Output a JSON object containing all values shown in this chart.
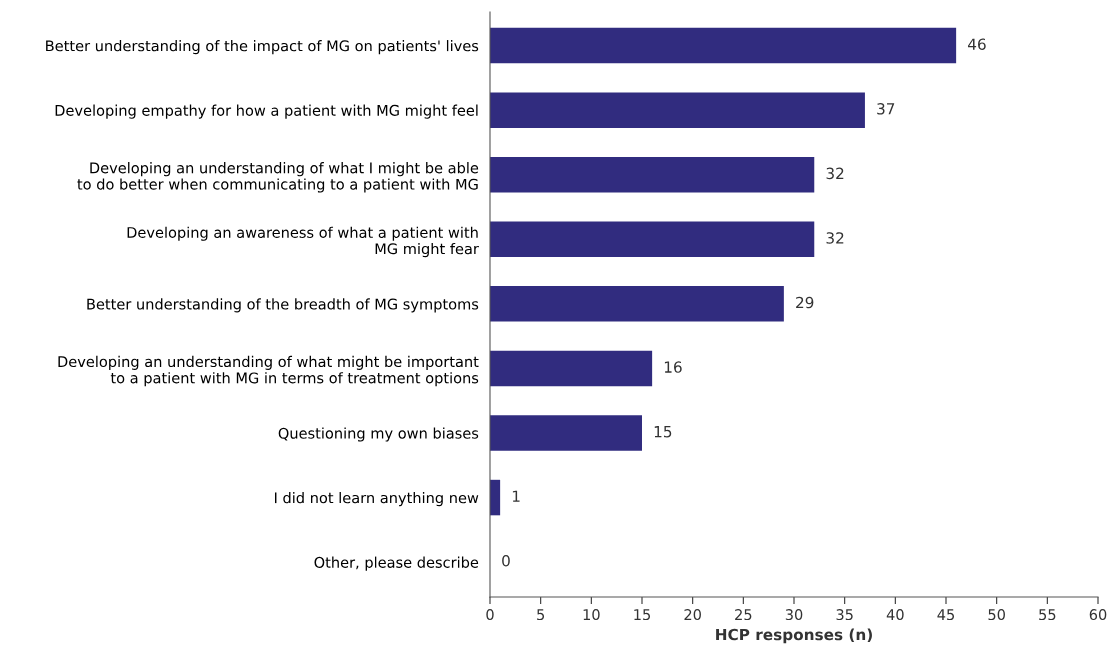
{
  "chart_data": {
    "type": "bar",
    "orientation": "horizontal",
    "xlabel": "HCP responses (n)",
    "categories": [
      "Better understanding of the impact of MG on patients' lives",
      "Developing empathy for how a patient with MG might feel",
      "Developing an understanding of what I might be able\nto do better when communicating to a patient with MG",
      "Developing an awareness of what a patient with\nMG might fear",
      "Better understanding of the breadth of MG symptoms",
      "Developing an understanding of what might be important\nto a patient with MG in terms of treatment options",
      "Questioning my own biases",
      "I did not learn anything new",
      "Other, please describe"
    ],
    "values": [
      46,
      37,
      32,
      32,
      29,
      16,
      15,
      1,
      0
    ],
    "color": "#312c7f",
    "xlim": [
      0,
      60
    ],
    "xticks": [
      0,
      5,
      10,
      15,
      20,
      25,
      30,
      35,
      40,
      45,
      50,
      55,
      60
    ],
    "data_labels": true,
    "grid": false,
    "legend": false
  }
}
